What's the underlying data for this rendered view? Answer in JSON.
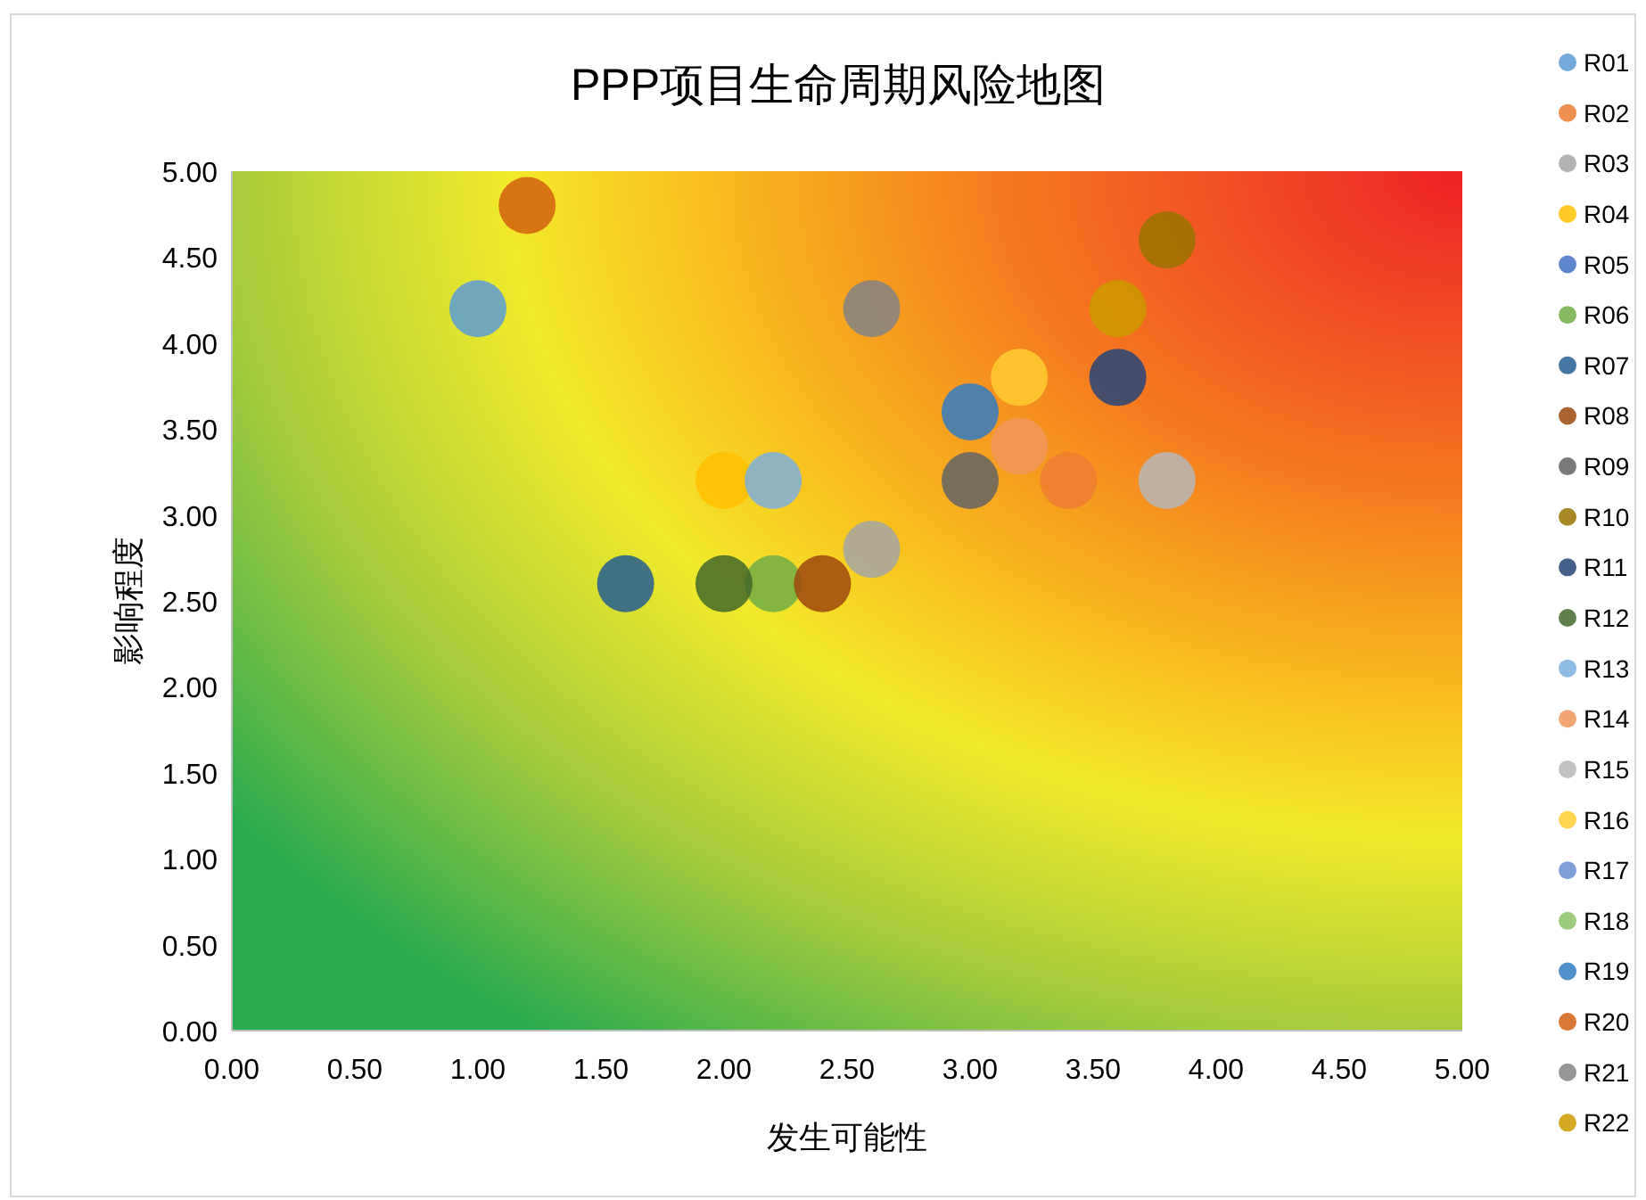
{
  "chart_data": {
    "type": "scatter",
    "title": "PPP项目生命周期风险地图",
    "xlabel": "发生可能性",
    "ylabel": "影响程度",
    "xlim": [
      0,
      5
    ],
    "ylim": [
      0,
      5
    ],
    "xticks": [
      {
        "value": 0,
        "label": "0.00"
      },
      {
        "value": 0.5,
        "label": "0.50"
      },
      {
        "value": 1,
        "label": "1.00"
      },
      {
        "value": 1.5,
        "label": "1.50"
      },
      {
        "value": 2,
        "label": "2.00"
      },
      {
        "value": 2.5,
        "label": "2.50"
      },
      {
        "value": 3,
        "label": "3.00"
      },
      {
        "value": 3.5,
        "label": "3.50"
      },
      {
        "value": 4,
        "label": "4.00"
      },
      {
        "value": 4.5,
        "label": "4.50"
      },
      {
        "value": 5,
        "label": "5.00"
      }
    ],
    "yticks": [
      {
        "value": 0,
        "label": "0.00"
      },
      {
        "value": 0.5,
        "label": "0.50"
      },
      {
        "value": 1,
        "label": "1.00"
      },
      {
        "value": 1.5,
        "label": "1.50"
      },
      {
        "value": 2,
        "label": "2.00"
      },
      {
        "value": 2.5,
        "label": "2.50"
      },
      {
        "value": 3,
        "label": "3.00"
      },
      {
        "value": 3.5,
        "label": "3.50"
      },
      {
        "value": 4,
        "label": "4.00"
      },
      {
        "value": 4.5,
        "label": "4.50"
      },
      {
        "value": 5,
        "label": "5.00"
      }
    ],
    "grid": false,
    "legend": "right",
    "marker": "circle",
    "series": [
      {
        "name": "R01",
        "color": "#5b9bd5",
        "x": [
          1.0
        ],
        "values": [
          4.2
        ]
      },
      {
        "name": "R02",
        "color": "#ed7d31",
        "x": [
          3.4
        ],
        "values": [
          3.2
        ]
      },
      {
        "name": "R03",
        "color": "#a5a5a5",
        "x": [
          2.6
        ],
        "values": [
          2.8
        ]
      },
      {
        "name": "R04",
        "color": "#ffc000",
        "x": [
          2.0
        ],
        "values": [
          3.2
        ]
      },
      {
        "name": "R05",
        "color": "#4472c4",
        "x": [
          null
        ],
        "values": [
          null
        ]
      },
      {
        "name": "R06",
        "color": "#70ad47",
        "x": [
          2.2
        ],
        "values": [
          2.6
        ]
      },
      {
        "name": "R07",
        "color": "#255e91",
        "x": [
          1.6
        ],
        "values": [
          2.6
        ]
      },
      {
        "name": "R08",
        "color": "#9e480e",
        "x": [
          2.4
        ],
        "values": [
          2.6
        ]
      },
      {
        "name": "R09",
        "color": "#636363",
        "x": [
          3.0
        ],
        "values": [
          3.2
        ]
      },
      {
        "name": "R10",
        "color": "#997300",
        "x": [
          3.8
        ],
        "values": [
          4.6
        ]
      },
      {
        "name": "R11",
        "color": "#264478",
        "x": [
          3.6
        ],
        "values": [
          3.8
        ]
      },
      {
        "name": "R12",
        "color": "#43682b",
        "x": [
          2.0
        ],
        "values": [
          2.6
        ]
      },
      {
        "name": "R13",
        "color": "#7cafdd",
        "x": [
          2.2
        ],
        "values": [
          3.2
        ]
      },
      {
        "name": "R14",
        "color": "#f1975a",
        "x": [
          3.2
        ],
        "values": [
          3.4
        ]
      },
      {
        "name": "R15",
        "color": "#b7b7b7",
        "x": [
          3.8
        ],
        "values": [
          3.2
        ]
      },
      {
        "name": "R16",
        "color": "#ffcd33",
        "x": [
          3.2
        ],
        "values": [
          3.8
        ]
      },
      {
        "name": "R17",
        "color": "#698ed0",
        "x": [
          null
        ],
        "values": [
          null
        ]
      },
      {
        "name": "R18",
        "color": "#8cc168",
        "x": [
          null
        ],
        "values": [
          null
        ]
      },
      {
        "name": "R19",
        "color": "#327dc2",
        "x": [
          3.0
        ],
        "values": [
          3.6
        ]
      },
      {
        "name": "R20",
        "color": "#d26012",
        "x": [
          1.2
        ],
        "values": [
          4.8
        ]
      },
      {
        "name": "R21",
        "color": "#848484",
        "x": [
          2.6
        ],
        "values": [
          4.2
        ]
      },
      {
        "name": "R22",
        "color": "#cc9a00",
        "x": [
          3.6
        ],
        "values": [
          4.2
        ]
      }
    ]
  }
}
